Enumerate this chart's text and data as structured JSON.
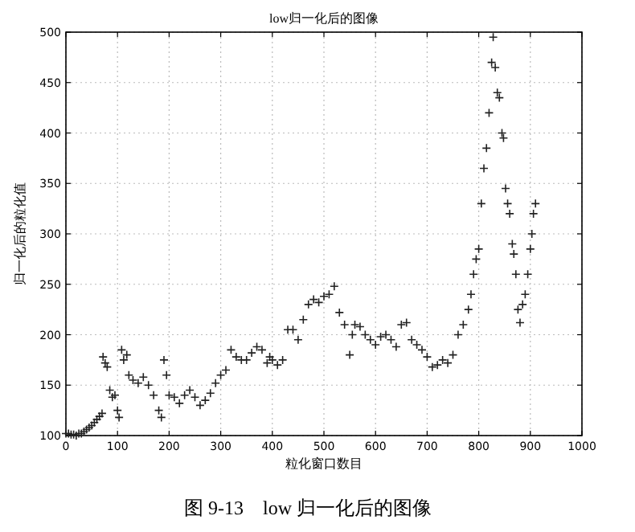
{
  "chart_data": {
    "type": "scatter",
    "title": "low归一化后的图像",
    "xlabel": "粒化窗口数目",
    "ylabel": "归一化后的粒化值",
    "annotations": [
      "图 9-13    low 归一化后的图像"
    ],
    "xlim": [
      0,
      1000
    ],
    "ylim": [
      100,
      500
    ],
    "xticks": [
      0,
      100,
      200,
      300,
      400,
      500,
      600,
      700,
      800,
      900,
      1000
    ],
    "yticks": [
      100,
      150,
      200,
      250,
      300,
      350,
      400,
      450,
      500
    ],
    "grid": true,
    "marker": "cross",
    "series": [
      {
        "color": "#222222",
        "x": [
          0,
          5,
          10,
          15,
          20,
          25,
          30,
          35,
          40,
          45,
          50,
          55,
          60,
          65,
          70,
          72,
          76,
          80,
          85,
          90,
          95,
          100,
          103,
          108,
          112,
          118,
          122,
          130,
          140,
          150,
          160,
          170,
          180,
          185,
          190,
          195,
          200,
          210,
          220,
          230,
          240,
          250,
          260,
          270,
          280,
          290,
          300,
          310,
          320,
          330,
          340,
          350,
          360,
          370,
          380,
          390,
          395,
          400,
          410,
          420,
          430,
          440,
          450,
          460,
          470,
          480,
          490,
          500,
          510,
          520,
          530,
          540,
          550,
          555,
          560,
          570,
          580,
          590,
          600,
          610,
          620,
          630,
          640,
          650,
          660,
          670,
          680,
          690,
          700,
          710,
          720,
          730,
          740,
          750,
          760,
          770,
          780,
          785,
          790,
          795,
          800,
          805,
          810,
          815,
          820,
          825,
          828,
          832,
          836,
          840,
          845,
          848,
          852,
          856,
          860,
          865,
          868,
          872,
          876,
          880,
          885,
          890,
          895,
          900,
          903,
          906,
          910
        ],
        "values": [
          102,
          102,
          101,
          101,
          100,
          102,
          102,
          104,
          106,
          108,
          110,
          113,
          116,
          119,
          122,
          178,
          172,
          168,
          145,
          138,
          140,
          125,
          118,
          185,
          175,
          180,
          160,
          155,
          152,
          158,
          150,
          140,
          125,
          118,
          175,
          160,
          140,
          138,
          132,
          140,
          145,
          138,
          130,
          135,
          142,
          152,
          160,
          165,
          185,
          178,
          175,
          175,
          182,
          188,
          185,
          172,
          178,
          175,
          170,
          175,
          205,
          205,
          195,
          215,
          230,
          235,
          232,
          238,
          240,
          248,
          222,
          210,
          180,
          200,
          210,
          208,
          200,
          195,
          190,
          198,
          200,
          195,
          188,
          210,
          212,
          195,
          190,
          185,
          178,
          168,
          170,
          175,
          172,
          180,
          200,
          210,
          225,
          240,
          260,
          275,
          285,
          330,
          365,
          385,
          420,
          470,
          495,
          465,
          440,
          435,
          400,
          395,
          345,
          330,
          320,
          290,
          280,
          260,
          225,
          212,
          230,
          240,
          260,
          285,
          300,
          320,
          330
        ]
      }
    ]
  }
}
